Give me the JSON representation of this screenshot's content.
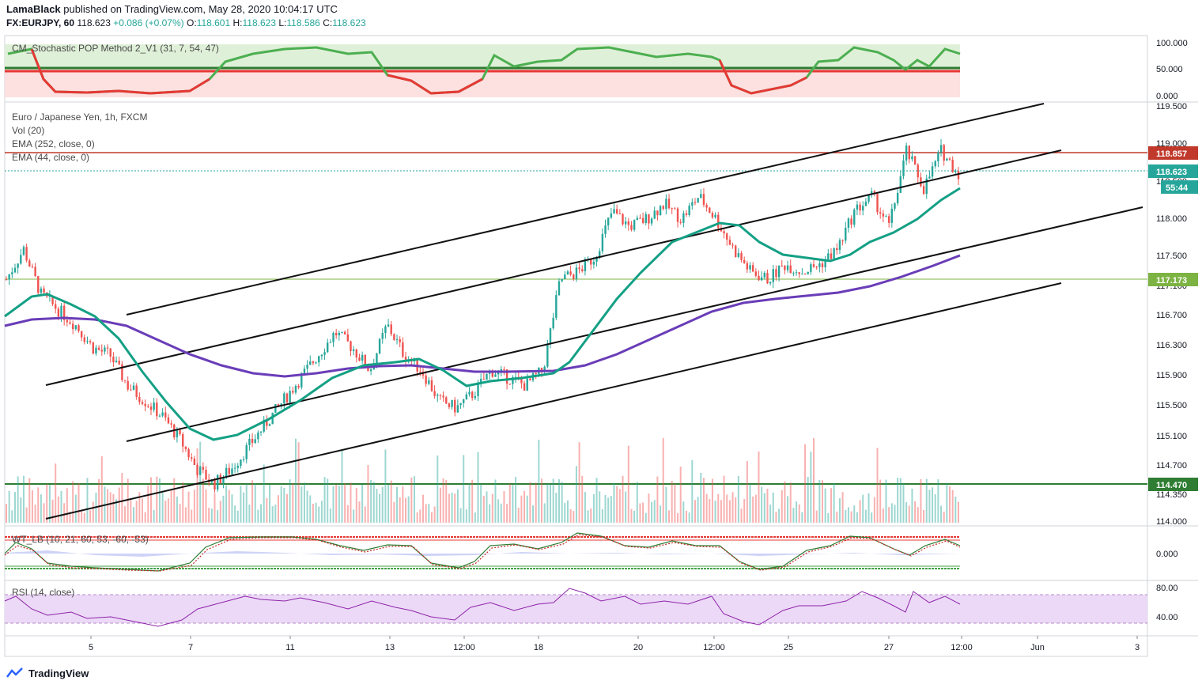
{
  "header": {
    "publisher": "LamaBlack",
    "published_text": "published on TradingView.com, May 28, 2020 10:04:17 UTC",
    "symbol": "FX:EURJPY, 60",
    "last": "118.623",
    "change": "+0.086 (+0.07%)",
    "o_label": "O:",
    "o": "118.601",
    "h_label": "H:",
    "h": "118.623",
    "l_label": "L:",
    "l": "118.586",
    "c_label": "C:",
    "c": "118.623"
  },
  "panes": {
    "stoch_label": "CM_Stochastic POP Method 2_V1 (31, 7, 54, 47)",
    "main_title": "Euro / Japanese Yen, 1h, FXCM",
    "vol_label": "Vol (20)",
    "ema252_label": "EMA (252, close, 0)",
    "ema44_label": "EMA (44, close, 0)",
    "wt_label": "WT_LB (10, 21, 60, 53, -60, -53)",
    "rsi_label": "RSI (14, close)"
  },
  "colors": {
    "bull": "#26a69a",
    "bear": "#ef5350",
    "ema44": "#14a085",
    "ema252": "#6a3db8",
    "resistance": "#c0392b",
    "support_green": "#2e7d32",
    "light_green": "#7cb342",
    "price_tag": "#26a69a"
  },
  "chart_data": {
    "type": "candlestick",
    "title": "Euro / Japanese Yen, 1h, FXCM",
    "x_ticks": [
      "5",
      "7",
      "11",
      "13",
      "12:00",
      "18",
      "20",
      "12:00",
      "25",
      "27",
      "12:00",
      "Jun",
      "3"
    ],
    "y_ticks": [
      "119.500",
      "119.000",
      "118.500",
      "118.000",
      "117.500",
      "117.100",
      "116.700",
      "116.300",
      "115.900",
      "115.500",
      "115.100",
      "114.700",
      "114.350",
      "114.000"
    ],
    "ylim": [
      114.0,
      119.5
    ],
    "price_tags": [
      {
        "label": "118.857",
        "value": 118.857,
        "role": "resistance"
      },
      {
        "label": "118.623",
        "value": 118.623,
        "role": "last"
      },
      {
        "label": "55:44",
        "value": 118.45,
        "role": "countdown"
      },
      {
        "label": "117.173",
        "value": 117.173,
        "role": "level"
      },
      {
        "label": "114.470",
        "value": 114.47,
        "role": "support"
      }
    ],
    "horizontal_levels": [
      118.857,
      117.173,
      114.47
    ],
    "candles_close_path": [
      117.2,
      117.6,
      117.0,
      116.8,
      116.6,
      116.3,
      116.2,
      115.8,
      115.6,
      115.4,
      115.1,
      114.7,
      114.5,
      114.7,
      115.0,
      115.3,
      115.6,
      115.9,
      116.2,
      116.5,
      116.3,
      116.0,
      116.6,
      116.2,
      116.0,
      115.6,
      115.5,
      115.7,
      116.0,
      115.9,
      115.8,
      116.0,
      117.2,
      117.3,
      117.5,
      118.1,
      117.9,
      118.0,
      118.2,
      118.0,
      118.3,
      118.0,
      117.6,
      117.3,
      117.2,
      117.4,
      117.3,
      117.4,
      117.6,
      118.1,
      118.3,
      117.9,
      118.9,
      118.4,
      118.9,
      118.6
    ],
    "ema44_path": [
      116.6,
      116.8,
      116.5,
      115.8,
      115.2,
      115.1,
      115.4,
      115.7,
      116.0,
      116.1,
      116.1,
      115.9,
      115.8,
      115.9,
      115.9,
      116.0,
      116.6,
      117.2,
      117.5,
      117.9,
      118.0,
      117.6,
      117.5,
      117.4,
      117.5,
      117.8,
      118.0,
      118.4
    ],
    "ema252_path": [
      116.6,
      116.65,
      116.5,
      116.2,
      116.0,
      115.95,
      116.0,
      116.05,
      115.95,
      115.95,
      116.0,
      116.3,
      116.7,
      116.95,
      117.0,
      117.05,
      117.15,
      117.3,
      117.45
    ],
    "stochastic": {
      "ylim": [
        0,
        100
      ],
      "y_ticks": [
        "100.000",
        "50.000",
        "0.000"
      ]
    },
    "wavetrend": {
      "y_ticks": [
        "0.000"
      ]
    },
    "rsi": {
      "y_ticks": [
        "80.00",
        "40.00"
      ],
      "bands": [
        70,
        30
      ]
    }
  },
  "footer": {
    "brand": "TradingView"
  }
}
